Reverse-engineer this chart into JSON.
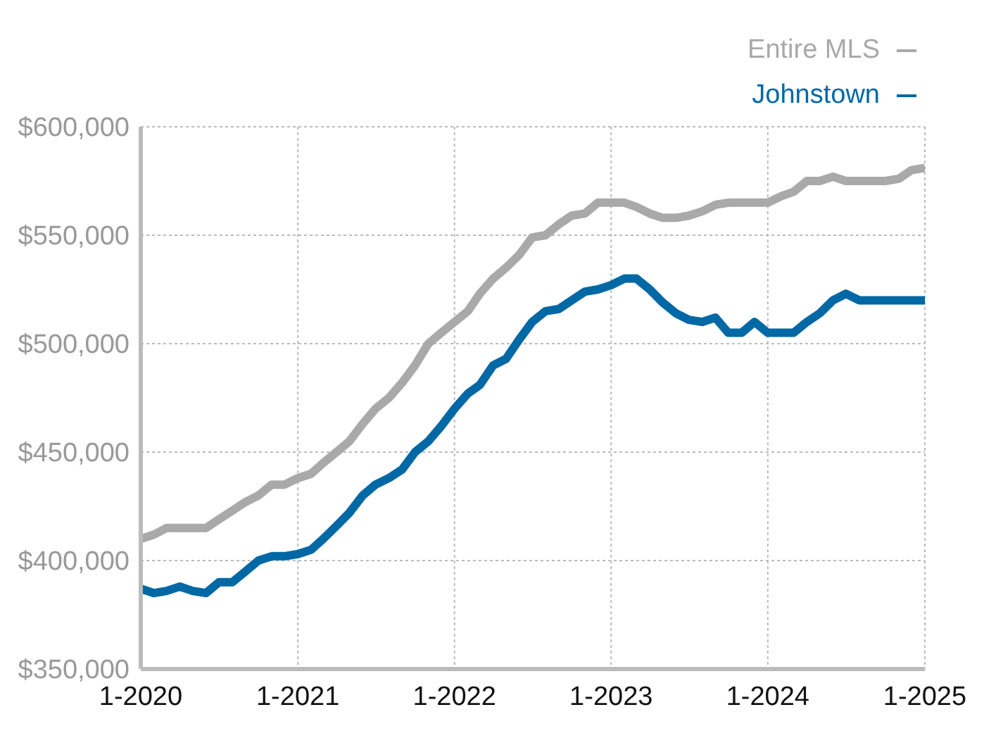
{
  "chart_data": {
    "type": "line",
    "x": [
      "2020-01",
      "2020-02",
      "2020-03",
      "2020-04",
      "2020-05",
      "2020-06",
      "2020-07",
      "2020-08",
      "2020-09",
      "2020-10",
      "2020-11",
      "2020-12",
      "2021-01",
      "2021-02",
      "2021-03",
      "2021-04",
      "2021-05",
      "2021-06",
      "2021-07",
      "2021-08",
      "2021-09",
      "2021-10",
      "2021-11",
      "2021-12",
      "2022-01",
      "2022-02",
      "2022-03",
      "2022-04",
      "2022-05",
      "2022-06",
      "2022-07",
      "2022-08",
      "2022-09",
      "2022-10",
      "2022-11",
      "2022-12",
      "2023-01",
      "2023-02",
      "2023-03",
      "2023-04",
      "2023-05",
      "2023-06",
      "2023-07",
      "2023-08",
      "2023-09",
      "2023-10",
      "2023-11",
      "2023-12",
      "2024-01",
      "2024-02",
      "2024-03",
      "2024-04",
      "2024-05",
      "2024-06",
      "2024-07",
      "2024-08",
      "2024-09",
      "2024-10",
      "2024-11",
      "2024-12",
      "2025-01"
    ],
    "series": [
      {
        "name": "Entire MLS",
        "color": "#a9a9a9",
        "values": [
          410000,
          412000,
          415000,
          415000,
          415000,
          415000,
          419000,
          423000,
          427000,
          430000,
          435000,
          435000,
          438000,
          440000,
          445000,
          450000,
          455000,
          463000,
          470000,
          475000,
          482000,
          490000,
          500000,
          505000,
          510000,
          515000,
          523000,
          530000,
          535000,
          541000,
          549000,
          550000,
          555000,
          559000,
          560000,
          565000,
          565000,
          565000,
          563000,
          560000,
          558000,
          558000,
          559000,
          561000,
          564000,
          565000,
          565000,
          565000,
          565000,
          568000,
          570000,
          575000,
          575000,
          577000,
          575000,
          575000,
          575000,
          575000,
          576000,
          580000,
          581000
        ]
      },
      {
        "name": "Johnstown",
        "color": "#0068a5",
        "values": [
          387000,
          385000,
          386000,
          388000,
          386000,
          385000,
          390000,
          390000,
          395000,
          400000,
          402000,
          402000,
          403000,
          405000,
          410000,
          416000,
          422000,
          430000,
          435000,
          438000,
          442000,
          450000,
          455000,
          462000,
          470000,
          477000,
          481000,
          490000,
          493000,
          502000,
          510000,
          515000,
          516000,
          520000,
          524000,
          525000,
          527000,
          530000,
          530000,
          525000,
          519000,
          514000,
          511000,
          510000,
          512000,
          505000,
          505000,
          510000,
          505000,
          505000,
          505000,
          510000,
          514000,
          520000,
          523000,
          520000,
          520000,
          520000,
          520000,
          520000,
          520000
        ]
      }
    ],
    "xlim": [
      "2020-01",
      "2025-01"
    ],
    "xticks": [
      {
        "value": "2020-01",
        "label": "1-2020"
      },
      {
        "value": "2021-01",
        "label": "1-2021"
      },
      {
        "value": "2022-01",
        "label": "1-2022"
      },
      {
        "value": "2023-01",
        "label": "1-2023"
      },
      {
        "value": "2024-01",
        "label": "1-2024"
      },
      {
        "value": "2025-01",
        "label": "1-2025"
      }
    ],
    "ylim": [
      350000,
      600000
    ],
    "yticks": [
      {
        "value": 350000,
        "label": "$350,000"
      },
      {
        "value": 400000,
        "label": "$400,000"
      },
      {
        "value": 450000,
        "label": "$450,000"
      },
      {
        "value": 500000,
        "label": "$500,000"
      },
      {
        "value": 550000,
        "label": "$550,000"
      },
      {
        "value": 600000,
        "label": "$600,000"
      }
    ],
    "grid": true,
    "legend": "top right",
    "marker": "none",
    "line_style": "solid"
  }
}
